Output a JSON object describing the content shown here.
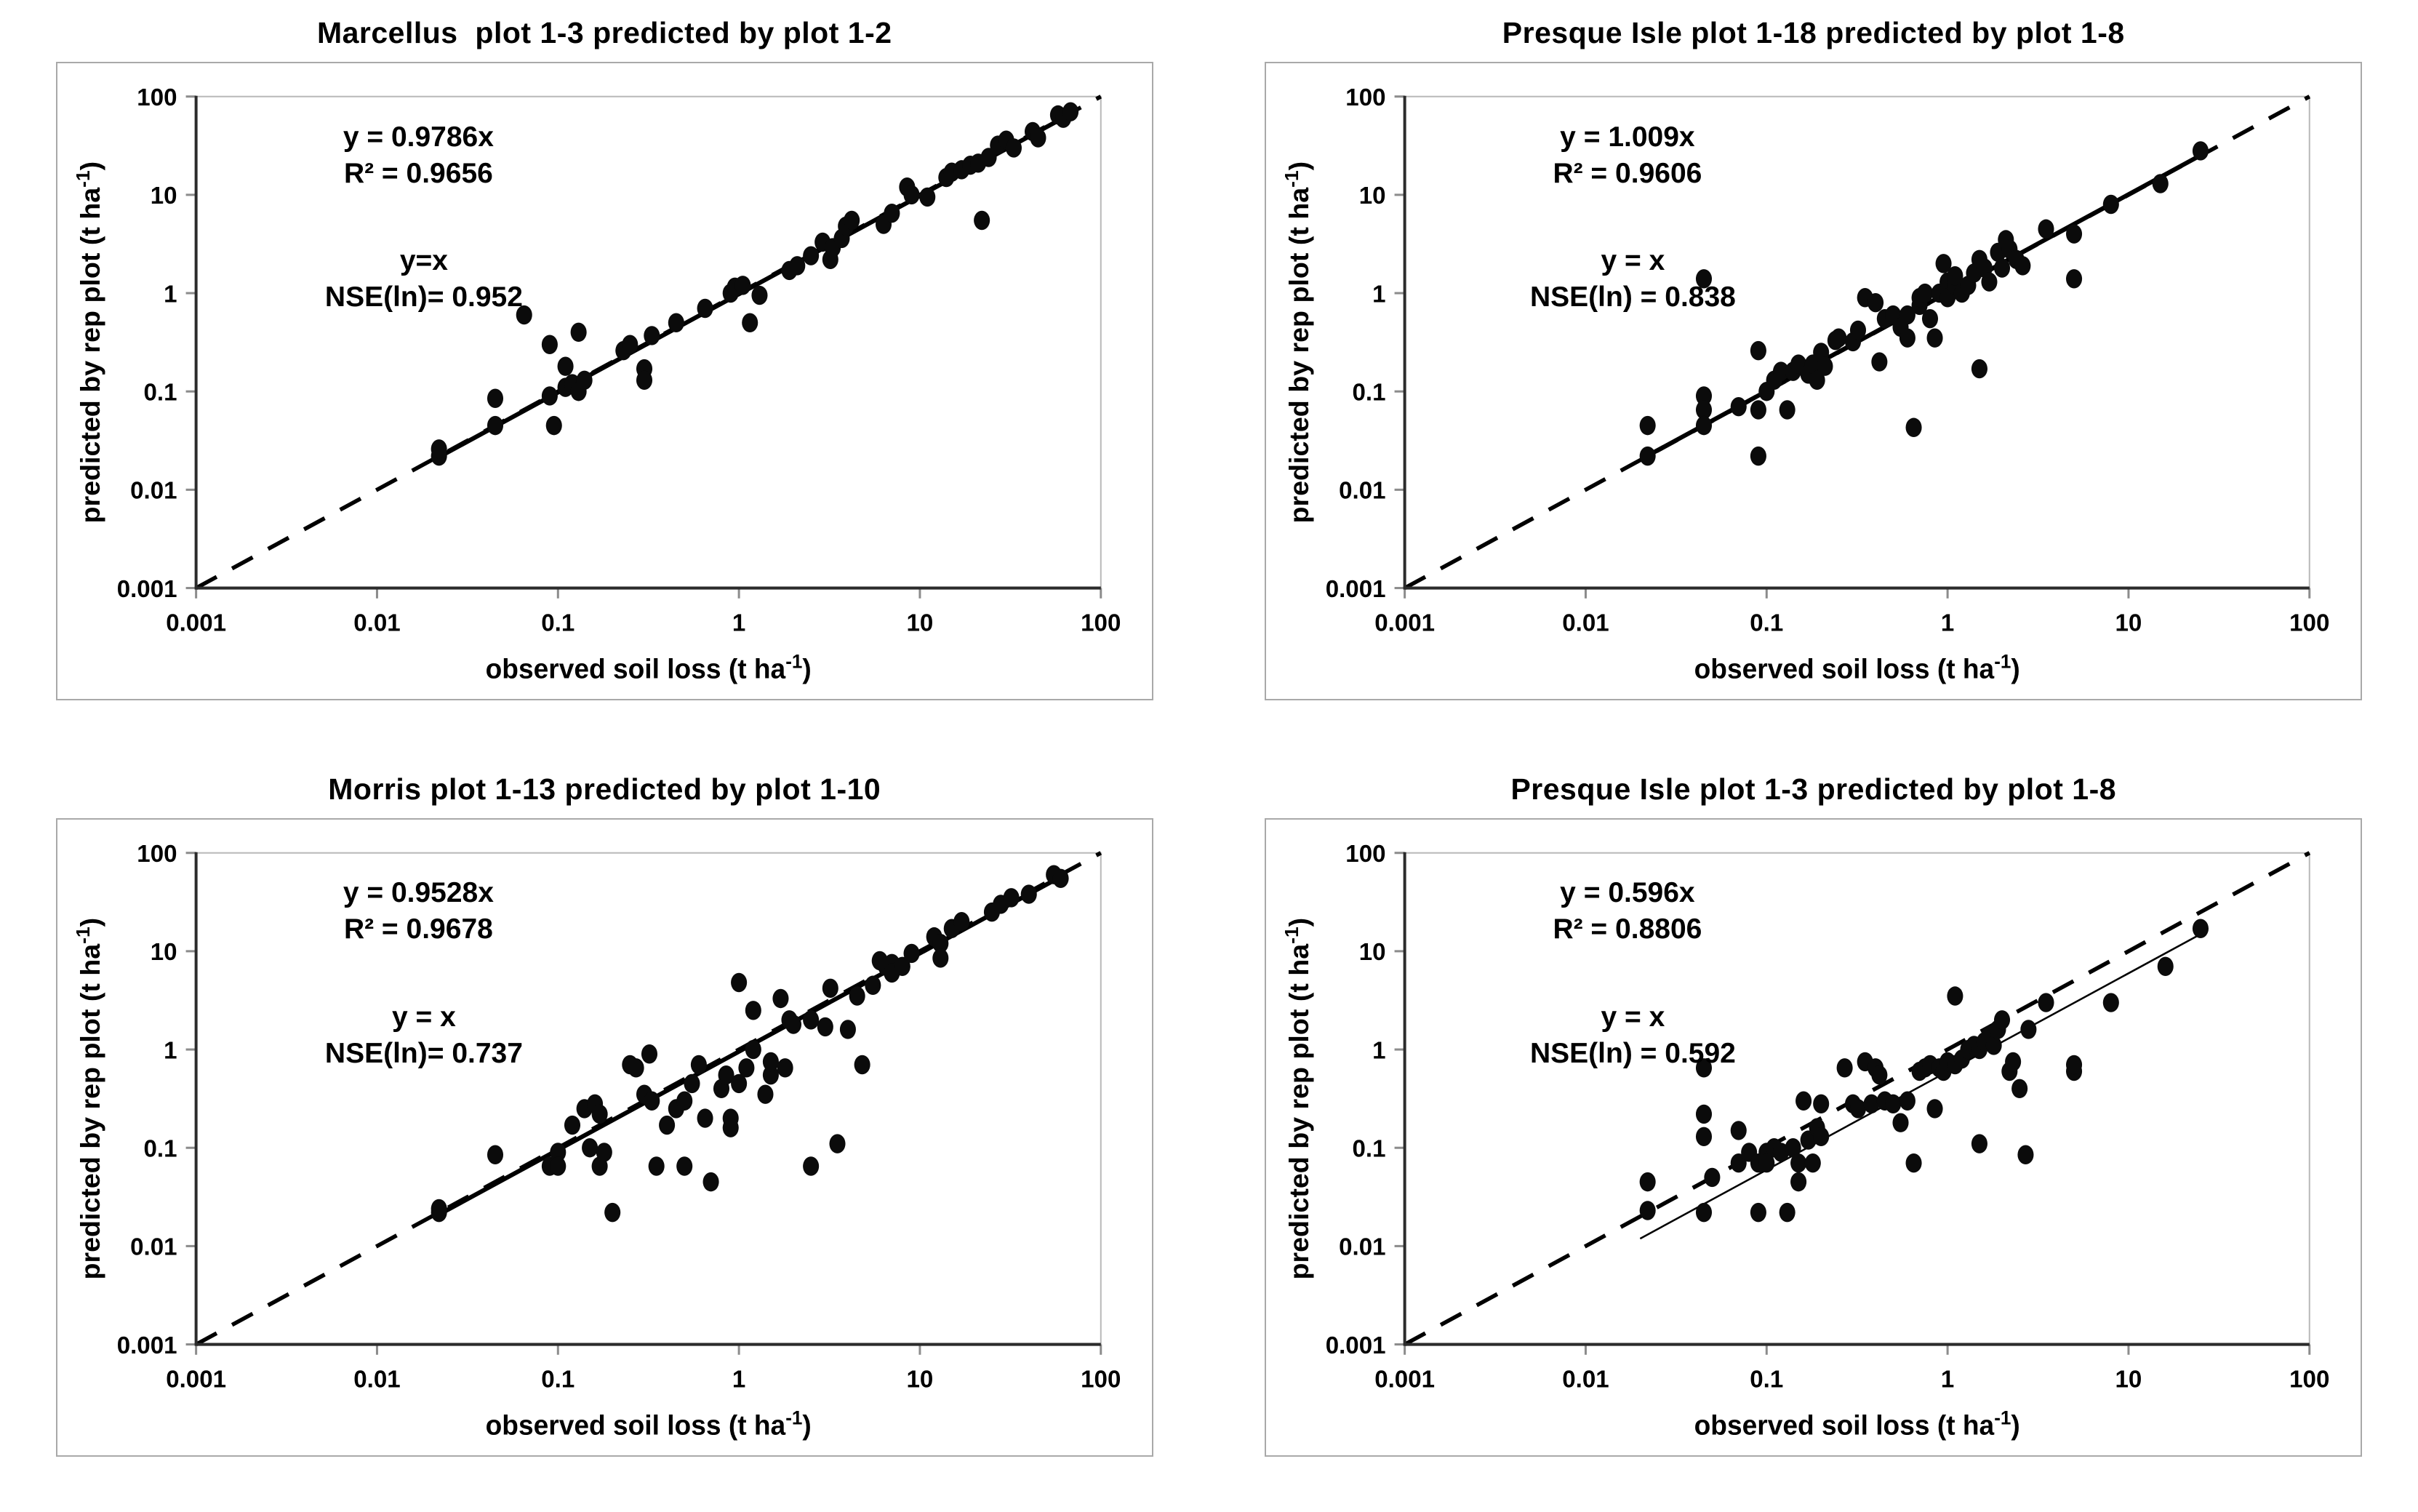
{
  "page": {
    "background": "#ffffff",
    "text_color": "#000000"
  },
  "axes": {
    "scale": "log-log",
    "range": [
      0.001,
      100
    ],
    "ticks": [
      "0.001",
      "0.01",
      "0.1",
      "1",
      "10",
      "100"
    ],
    "xlabel_prefix": "observed soil loss  (t ha",
    "xlabel_sup": "-1",
    "xlabel_close": ")",
    "ylabel_prefix": "predicted by rep plot (t ha",
    "ylabel_sup": "-1",
    "ylabel_close": ")",
    "identity_line_style": "dashed",
    "grid": "off",
    "colors": {
      "points": "#0b0b0b",
      "axis": "#2b2b2b",
      "tick": "#8c8c8c",
      "line": "#000000",
      "panel_border": "#a9a9a9",
      "plot_border": "#b9b9b9"
    }
  },
  "chart_data": [
    {
      "type": "scatter",
      "title": "Marcellus  plot 1-3 predicted by plot 1-2",
      "xlabel": "observed soil loss  (t ha⁻¹)",
      "ylabel": "predicted by rep plot (t ha⁻¹)",
      "equation": "y = 0.9786x",
      "r2": "R² = 0.9656",
      "identity_label": "y=x",
      "nse": "NSE(ln)= 0.952",
      "fit_slope": 0.9786,
      "fit_x_range": [
        0.022,
        68
      ],
      "fit_line_weight": "thick",
      "xlim": [
        0.001,
        100
      ],
      "ylim": [
        0.001,
        100
      ],
      "points": [
        [
          0.022,
          0.022
        ],
        [
          0.022,
          0.026
        ],
        [
          0.045,
          0.045
        ],
        [
          0.045,
          0.085
        ],
        [
          0.065,
          0.6
        ],
        [
          0.09,
          0.09
        ],
        [
          0.09,
          0.3
        ],
        [
          0.095,
          0.045
        ],
        [
          0.11,
          0.18
        ],
        [
          0.11,
          0.11
        ],
        [
          0.12,
          0.12
        ],
        [
          0.13,
          0.4
        ],
        [
          0.13,
          0.1
        ],
        [
          0.14,
          0.13
        ],
        [
          0.23,
          0.26
        ],
        [
          0.25,
          0.3
        ],
        [
          0.3,
          0.17
        ],
        [
          0.3,
          0.13
        ],
        [
          0.33,
          0.37
        ],
        [
          0.45,
          0.5
        ],
        [
          0.65,
          0.7
        ],
        [
          0.9,
          1.0
        ],
        [
          0.95,
          1.15
        ],
        [
          1.05,
          1.2
        ],
        [
          1.15,
          0.5
        ],
        [
          1.3,
          0.95
        ],
        [
          1.9,
          1.7
        ],
        [
          2.1,
          1.9
        ],
        [
          2.5,
          2.4
        ],
        [
          2.9,
          3.3
        ],
        [
          3.2,
          2.2
        ],
        [
          3.3,
          2.9
        ],
        [
          3.7,
          3.6
        ],
        [
          3.9,
          4.8
        ],
        [
          4.2,
          5.5
        ],
        [
          6.3,
          5.0
        ],
        [
          7,
          6.5
        ],
        [
          8.5,
          12
        ],
        [
          9,
          10
        ],
        [
          11,
          9.5
        ],
        [
          14,
          15
        ],
        [
          15,
          17
        ],
        [
          17,
          18
        ],
        [
          19,
          20
        ],
        [
          21,
          21
        ],
        [
          22,
          5.5
        ],
        [
          24,
          24
        ],
        [
          27,
          32
        ],
        [
          30,
          36
        ],
        [
          33,
          30
        ],
        [
          42,
          44
        ],
        [
          45,
          38
        ],
        [
          58,
          65
        ],
        [
          62,
          60
        ],
        [
          68,
          70
        ]
      ]
    },
    {
      "type": "scatter",
      "title": "Presque Isle plot 1-18 predicted by plot 1-8",
      "xlabel": "observed soil loss  (t ha⁻¹)",
      "ylabel": "predicted by rep plot (t ha⁻¹)",
      "equation": "y = 1.009x",
      "r2": "R² = 0.9606",
      "identity_label": "y = x",
      "nse": "NSE(ln) = 0.838",
      "fit_slope": 1.009,
      "fit_x_range": [
        0.022,
        25
      ],
      "fit_line_weight": "thick",
      "xlim": [
        0.001,
        100
      ],
      "ylim": [
        0.001,
        100
      ],
      "points": [
        [
          0.022,
          0.022
        ],
        [
          0.022,
          0.045
        ],
        [
          0.045,
          1.4
        ],
        [
          0.045,
          0.09
        ],
        [
          0.045,
          0.065
        ],
        [
          0.045,
          0.045
        ],
        [
          0.07,
          0.07
        ],
        [
          0.09,
          0.065
        ],
        [
          0.09,
          0.022
        ],
        [
          0.09,
          0.26
        ],
        [
          0.1,
          0.1
        ],
        [
          0.11,
          0.13
        ],
        [
          0.12,
          0.16
        ],
        [
          0.13,
          0.065
        ],
        [
          0.14,
          0.16
        ],
        [
          0.15,
          0.19
        ],
        [
          0.17,
          0.15
        ],
        [
          0.18,
          0.19
        ],
        [
          0.19,
          0.13
        ],
        [
          0.2,
          0.25
        ],
        [
          0.21,
          0.18
        ],
        [
          0.24,
          0.33
        ],
        [
          0.25,
          0.35
        ],
        [
          0.3,
          0.32
        ],
        [
          0.32,
          0.42
        ],
        [
          0.35,
          0.9
        ],
        [
          0.4,
          0.8
        ],
        [
          0.42,
          0.2
        ],
        [
          0.45,
          0.55
        ],
        [
          0.5,
          0.6
        ],
        [
          0.55,
          0.45
        ],
        [
          0.6,
          0.6
        ],
        [
          0.6,
          0.35
        ],
        [
          0.65,
          0.043
        ],
        [
          0.7,
          0.75
        ],
        [
          0.7,
          0.9
        ],
        [
          0.75,
          1.0
        ],
        [
          0.8,
          0.55
        ],
        [
          0.85,
          0.35
        ],
        [
          0.9,
          1.0
        ],
        [
          0.95,
          2.0
        ],
        [
          1.0,
          1.3
        ],
        [
          1.0,
          0.9
        ],
        [
          1.1,
          1.2
        ],
        [
          1.1,
          1.5
        ],
        [
          1.2,
          1.0
        ],
        [
          1.3,
          1.2
        ],
        [
          1.4,
          1.6
        ],
        [
          1.5,
          0.17
        ],
        [
          1.5,
          2.2
        ],
        [
          1.6,
          1.8
        ],
        [
          1.7,
          1.3
        ],
        [
          1.9,
          2.6
        ],
        [
          2.0,
          1.8
        ],
        [
          2.1,
          3.5
        ],
        [
          2.2,
          2.8
        ],
        [
          2.4,
          2.2
        ],
        [
          2.6,
          1.9
        ],
        [
          3.5,
          4.5
        ],
        [
          5,
          1.4
        ],
        [
          5,
          4
        ],
        [
          8,
          8
        ],
        [
          15,
          13
        ],
        [
          25,
          28
        ]
      ]
    },
    {
      "type": "scatter",
      "title": "Morris plot 1-13 predicted by plot 1-10",
      "xlabel": "observed soil loss  (t ha⁻¹)",
      "ylabel": "predicted by rep plot (t ha⁻¹)",
      "equation": "y = 0.9528x",
      "r2": "R² = 0.9678",
      "identity_label": "y = x",
      "nse": "NSE(ln)= 0.737",
      "fit_slope": 0.9528,
      "fit_x_range": [
        0.022,
        60
      ],
      "fit_line_weight": "thick",
      "xlim": [
        0.001,
        100
      ],
      "ylim": [
        0.001,
        100
      ],
      "points": [
        [
          0.022,
          0.022
        ],
        [
          0.022,
          0.024
        ],
        [
          0.045,
          0.085
        ],
        [
          0.09,
          0.065
        ],
        [
          0.1,
          0.09
        ],
        [
          0.1,
          0.065
        ],
        [
          0.12,
          0.17
        ],
        [
          0.14,
          0.25
        ],
        [
          0.15,
          0.1
        ],
        [
          0.16,
          0.28
        ],
        [
          0.17,
          0.22
        ],
        [
          0.17,
          0.065
        ],
        [
          0.18,
          0.09
        ],
        [
          0.2,
          0.022
        ],
        [
          0.25,
          0.7
        ],
        [
          0.27,
          0.65
        ],
        [
          0.3,
          0.35
        ],
        [
          0.32,
          0.9
        ],
        [
          0.33,
          0.3
        ],
        [
          0.35,
          0.065
        ],
        [
          0.4,
          0.17
        ],
        [
          0.45,
          0.25
        ],
        [
          0.5,
          0.3
        ],
        [
          0.5,
          0.065
        ],
        [
          0.55,
          0.45
        ],
        [
          0.6,
          0.7
        ],
        [
          0.65,
          0.2
        ],
        [
          0.7,
          0.045
        ],
        [
          0.8,
          0.4
        ],
        [
          0.85,
          0.55
        ],
        [
          0.9,
          0.2
        ],
        [
          0.9,
          0.16
        ],
        [
          1.0,
          4.8
        ],
        [
          1.0,
          0.45
        ],
        [
          1.1,
          0.65
        ],
        [
          1.2,
          1.0
        ],
        [
          1.2,
          2.5
        ],
        [
          1.4,
          0.35
        ],
        [
          1.5,
          0.55
        ],
        [
          1.5,
          0.75
        ],
        [
          1.7,
          3.3
        ],
        [
          1.8,
          0.65
        ],
        [
          1.9,
          2.0
        ],
        [
          2.0,
          1.8
        ],
        [
          2.5,
          2.0
        ],
        [
          2.5,
          0.065
        ],
        [
          3.0,
          1.7
        ],
        [
          3.2,
          4.2
        ],
        [
          3.5,
          0.11
        ],
        [
          4.0,
          1.6
        ],
        [
          4.5,
          3.5
        ],
        [
          4.8,
          0.7
        ],
        [
          5.5,
          4.5
        ],
        [
          6,
          8
        ],
        [
          6.5,
          7
        ],
        [
          7,
          7.5
        ],
        [
          7,
          6
        ],
        [
          8,
          7
        ],
        [
          9,
          9.5
        ],
        [
          12,
          14
        ],
        [
          13,
          12
        ],
        [
          13,
          8.5
        ],
        [
          15,
          17
        ],
        [
          17,
          20
        ],
        [
          25,
          25
        ],
        [
          28,
          30
        ],
        [
          32,
          35
        ],
        [
          40,
          38
        ],
        [
          55,
          60
        ],
        [
          60,
          55
        ]
      ]
    },
    {
      "type": "scatter",
      "title": "Presque Isle plot 1-3 predicted by plot 1-8",
      "xlabel": "observed soil loss  (t ha⁻¹)",
      "ylabel": "predicted by rep plot (t ha⁻¹)",
      "equation": "y = 0.596x",
      "r2": "R² = 0.8806",
      "identity_label": "y = x",
      "nse": "NSE(ln) = 0.592",
      "fit_slope": 0.596,
      "fit_x_range": [
        0.02,
        25
      ],
      "fit_line_weight": "thin",
      "xlim": [
        0.001,
        100
      ],
      "ylim": [
        0.001,
        100
      ],
      "points": [
        [
          0.022,
          0.045
        ],
        [
          0.022,
          0.023
        ],
        [
          0.045,
          0.65
        ],
        [
          0.045,
          0.22
        ],
        [
          0.045,
          0.13
        ],
        [
          0.045,
          0.022
        ],
        [
          0.05,
          0.05
        ],
        [
          0.07,
          0.15
        ],
        [
          0.07,
          0.07
        ],
        [
          0.08,
          0.09
        ],
        [
          0.09,
          0.07
        ],
        [
          0.09,
          0.022
        ],
        [
          0.1,
          0.09
        ],
        [
          0.1,
          0.07
        ],
        [
          0.11,
          0.1
        ],
        [
          0.12,
          0.09
        ],
        [
          0.13,
          0.022
        ],
        [
          0.14,
          0.1
        ],
        [
          0.15,
          0.07
        ],
        [
          0.15,
          0.045
        ],
        [
          0.16,
          0.3
        ],
        [
          0.17,
          0.12
        ],
        [
          0.18,
          0.07
        ],
        [
          0.19,
          0.16
        ],
        [
          0.2,
          0.28
        ],
        [
          0.2,
          0.13
        ],
        [
          0.27,
          0.65
        ],
        [
          0.3,
          0.28
        ],
        [
          0.32,
          0.25
        ],
        [
          0.35,
          0.75
        ],
        [
          0.38,
          0.28
        ],
        [
          0.4,
          0.65
        ],
        [
          0.42,
          0.55
        ],
        [
          0.45,
          0.3
        ],
        [
          0.5,
          0.28
        ],
        [
          0.55,
          0.18
        ],
        [
          0.6,
          0.3
        ],
        [
          0.65,
          0.07
        ],
        [
          0.7,
          0.6
        ],
        [
          0.75,
          0.65
        ],
        [
          0.8,
          0.7
        ],
        [
          0.85,
          0.25
        ],
        [
          0.9,
          0.65
        ],
        [
          0.95,
          0.6
        ],
        [
          1.0,
          0.75
        ],
        [
          1.1,
          3.5
        ],
        [
          1.1,
          0.7
        ],
        [
          1.2,
          0.8
        ],
        [
          1.3,
          1.0
        ],
        [
          1.4,
          1.1
        ],
        [
          1.5,
          0.11
        ],
        [
          1.5,
          1.0
        ],
        [
          1.6,
          1.2
        ],
        [
          1.7,
          1.4
        ],
        [
          1.8,
          1.1
        ],
        [
          1.9,
          1.6
        ],
        [
          2.0,
          2.0
        ],
        [
          2.2,
          0.6
        ],
        [
          2.3,
          0.75
        ],
        [
          2.5,
          0.4
        ],
        [
          2.7,
          0.085
        ],
        [
          2.8,
          1.6
        ],
        [
          3.5,
          3.0
        ],
        [
          5,
          0.6
        ],
        [
          5,
          0.7
        ],
        [
          8,
          3.0
        ],
        [
          16,
          7
        ],
        [
          25,
          17
        ]
      ]
    }
  ]
}
